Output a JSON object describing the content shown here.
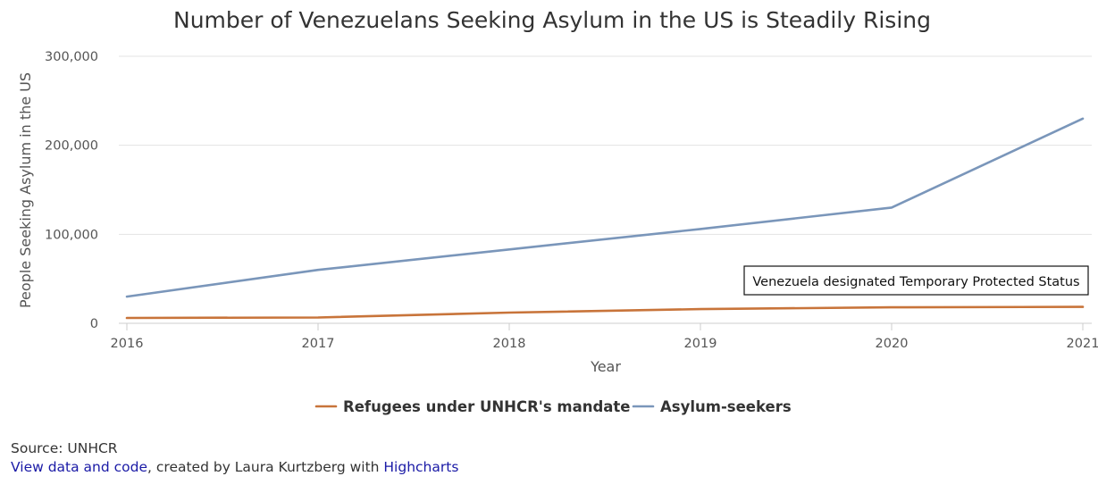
{
  "chart_data": {
    "type": "line",
    "title": "Number of Venezuelans Seeking Asylum in the US is Steadily Rising",
    "xlabel": "Year",
    "ylabel": "People Seeking Asylum in the US",
    "x": [
      2016,
      2017,
      2018,
      2019,
      2020,
      2021
    ],
    "x_tick_labels": [
      "2016",
      "2017",
      "2018",
      "2019",
      "2020",
      "2021"
    ],
    "ylim": [
      0,
      300000
    ],
    "y_ticks": [
      0,
      100000,
      200000,
      300000
    ],
    "y_tick_labels": [
      "0",
      "100,000",
      "200,000",
      "300,000"
    ],
    "grid": true,
    "series": [
      {
        "name": "Refugees under UNHCR's mandate",
        "color": "#c8743a",
        "values": [
          6000,
          6500,
          12000,
          16000,
          18000,
          18500
        ]
      },
      {
        "name": "Asylum-seekers",
        "color": "#7a96ba",
        "values": [
          30000,
          60000,
          83000,
          106000,
          130000,
          230000
        ]
      }
    ],
    "annotation": {
      "text": "Venezuela designated Temporary Protected Status",
      "x": 2021,
      "y": 18500
    },
    "legend_position": "bottom"
  },
  "footer": {
    "source": "Source: UNHCR",
    "link_text": "View data and code",
    "credit_mid": ", created by Laura Kurtzberg with ",
    "credit_link": "Highcharts"
  }
}
